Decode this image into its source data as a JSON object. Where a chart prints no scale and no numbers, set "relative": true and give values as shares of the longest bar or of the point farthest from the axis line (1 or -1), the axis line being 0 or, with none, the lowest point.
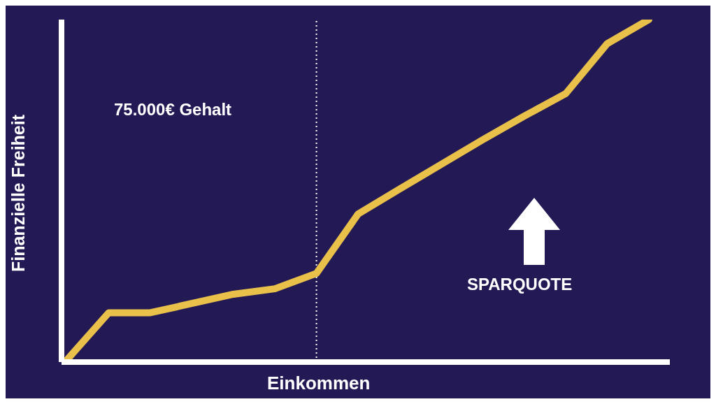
{
  "chart_data": {
    "type": "line",
    "relative": true,
    "xlabel": "Einkommen",
    "ylabel": "Finanzielle Freiheit",
    "categories": [
      null,
      null,
      null,
      null,
      null,
      null,
      null,
      null,
      null,
      null,
      null,
      null,
      null,
      null,
      null
    ],
    "series": [
      {
        "color": "#e8c04a",
        "values": [
          0.007,
          0.144,
          0.144,
          0.171,
          0.198,
          0.214,
          0.259,
          0.432,
          0.505,
          0.577,
          0.649,
          0.718,
          0.784,
          0.93,
          1
        ]
      }
    ],
    "annotations": [
      "75.000€ Gehalt",
      "SPARQUOTE"
    ],
    "marker": "none",
    "grid": false,
    "legend": false
  }
}
